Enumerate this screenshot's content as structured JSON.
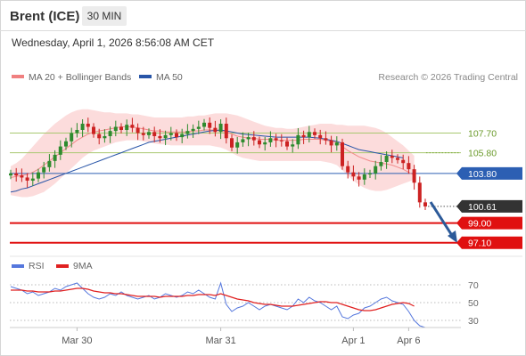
{
  "header": {
    "title": "Brent (ICE)",
    "timeframe": "30 MIN",
    "timestamp": "Wednesday, April 1, 2026 8:56:08 AM CET"
  },
  "legend": {
    "ma20": "MA 20 + Bollinger Bands",
    "ma50": "MA 50",
    "credit": "Research © 2026 Trading Central",
    "ma20_color": "#f08080",
    "ma50_color": "#2855a8"
  },
  "rsi_legend": {
    "rsi": "RSI",
    "ma": "9MA",
    "rsi_color": "#5577dd",
    "ma_color": "#e02020"
  },
  "levels": [
    {
      "value": 107.7,
      "label": "107.70",
      "kind": "green"
    },
    {
      "value": 105.8,
      "label": "105.80",
      "kind": "green"
    },
    {
      "value": 103.8,
      "label": "103.80",
      "kind": "blue"
    },
    {
      "value": 100.61,
      "label": "100.61",
      "kind": "last"
    },
    {
      "value": 99.0,
      "label": "99.00",
      "kind": "red"
    },
    {
      "value": 97.1,
      "label": "97.10",
      "kind": "red"
    }
  ],
  "colors": {
    "up": "#2e8b2e",
    "down": "#cc2222",
    "blue_level": "#2c5fb3",
    "red_level": "#e01010",
    "green_level": "#a8c870",
    "band_fill": "#fbd0d0",
    "last_bg": "#333333"
  },
  "chart_data": {
    "type": "candlestick",
    "ylim": [
      96.3,
      112.3
    ],
    "x_ticks": [
      "Mar 30",
      "Mar 31",
      "Apr 1",
      "Apr 6"
    ],
    "x_tick_index": [
      12,
      38,
      62,
      72
    ],
    "n_bars": 76,
    "closes": [
      103.8,
      103.6,
      103.4,
      103.1,
      103.3,
      103.9,
      104.4,
      105.0,
      105.6,
      106.4,
      106.9,
      107.7,
      108.0,
      108.6,
      108.3,
      107.6,
      107.2,
      107.4,
      107.9,
      108.3,
      108.0,
      108.5,
      108.2,
      107.7,
      107.5,
      107.8,
      107.4,
      107.2,
      107.5,
      107.7,
      107.3,
      107.6,
      107.9,
      108.1,
      108.3,
      108.7,
      108.2,
      107.8,
      108.6,
      107.2,
      106.3,
      106.8,
      107.1,
      107.3,
      107.0,
      106.6,
      106.8,
      107.2,
      107.0,
      106.9,
      106.4,
      106.6,
      107.5,
      107.3,
      107.8,
      107.5,
      107.2,
      107.0,
      106.5,
      106.8,
      104.5,
      103.9,
      103.5,
      103.2,
      103.7,
      103.8,
      104.5,
      104.9,
      105.5,
      105.3,
      105.1,
      104.8,
      104.2,
      102.9,
      101.0,
      100.61
    ],
    "ma50": [
      102.0,
      102.1,
      102.3,
      102.4,
      102.6,
      102.8,
      103.0,
      103.2,
      103.4,
      103.6,
      103.8,
      104.0,
      104.2,
      104.4,
      104.6,
      104.8,
      105.0,
      105.2,
      105.4,
      105.6,
      105.8,
      106.0,
      106.2,
      106.4,
      106.6,
      106.8,
      106.9,
      107.0,
      107.1,
      107.2,
      107.3,
      107.4,
      107.5,
      107.6,
      107.7,
      107.8,
      107.9,
      107.95,
      108.0,
      107.9,
      107.8,
      107.7,
      107.6,
      107.55,
      107.5,
      107.45,
      107.4,
      107.35,
      107.3,
      107.3,
      107.3,
      107.3,
      107.3,
      107.3,
      107.3,
      107.25,
      107.2,
      107.1,
      107.0,
      106.9,
      106.7,
      106.5,
      106.3,
      106.1,
      106.0,
      105.9,
      105.8,
      105.7,
      105.6,
      105.5,
      105.4,
      105.3,
      null,
      null,
      null,
      null
    ],
    "ma20": [
      103.4,
      103.5,
      103.6,
      103.7,
      103.9,
      104.2,
      104.6,
      105.0,
      105.4,
      105.8,
      106.2,
      106.6,
      107.0,
      107.3,
      107.6,
      107.8,
      107.9,
      108.0,
      108.1,
      108.2,
      108.3,
      108.3,
      108.3,
      108.2,
      108.1,
      108.0,
      107.9,
      107.9,
      107.8,
      107.8,
      107.8,
      107.8,
      107.8,
      107.9,
      107.9,
      108.0,
      108.0,
      108.0,
      107.9,
      107.8,
      107.6,
      107.4,
      107.3,
      107.2,
      107.2,
      107.1,
      107.1,
      107.1,
      107.0,
      107.0,
      107.0,
      107.0,
      107.0,
      107.1,
      107.1,
      107.1,
      107.1,
      107.0,
      106.9,
      106.8,
      106.4,
      106.0,
      105.7,
      105.4,
      105.2,
      105.0,
      104.9,
      104.8,
      104.7,
      104.6,
      104.4,
      104.2,
      103.9,
      103.6,
      null,
      null
    ],
    "bb_upper": [
      104.5,
      104.8,
      105.2,
      105.8,
      106.4,
      107.0,
      107.6,
      108.1,
      108.6,
      109.0,
      109.4,
      109.7,
      109.9,
      110.0,
      110.0,
      109.9,
      109.8,
      109.7,
      109.7,
      109.6,
      109.6,
      109.6,
      109.5,
      109.5,
      109.4,
      109.3,
      109.2,
      109.2,
      109.2,
      109.2,
      109.2,
      109.2,
      109.3,
      109.3,
      109.4,
      109.4,
      109.5,
      109.6,
      109.6,
      109.6,
      109.5,
      109.4,
      109.2,
      109.0,
      108.8,
      108.6,
      108.4,
      108.3,
      108.2,
      108.2,
      108.1,
      108.1,
      108.2,
      108.3,
      108.4,
      108.5,
      108.6,
      108.6,
      108.6,
      108.5,
      108.5,
      108.4,
      108.4,
      108.4,
      108.4,
      108.3,
      108.2,
      108.0,
      107.7,
      107.3,
      106.9,
      106.5,
      106.0,
      105.5,
      null,
      null
    ],
    "bb_lower": [
      101.7,
      101.6,
      101.5,
      101.5,
      101.6,
      101.8,
      102.0,
      102.4,
      102.8,
      103.3,
      103.8,
      104.3,
      104.8,
      105.3,
      105.7,
      106.0,
      106.2,
      106.4,
      106.6,
      106.8,
      106.9,
      107.0,
      107.0,
      107.0,
      106.9,
      106.8,
      106.7,
      106.6,
      106.6,
      106.5,
      106.5,
      106.5,
      106.5,
      106.5,
      106.5,
      106.5,
      106.5,
      106.4,
      106.3,
      106.1,
      105.8,
      105.5,
      105.3,
      105.2,
      105.1,
      105.0,
      105.0,
      105.0,
      105.0,
      105.0,
      105.0,
      105.0,
      105.0,
      105.0,
      105.0,
      105.0,
      105.0,
      104.9,
      104.8,
      104.6,
      104.1,
      103.6,
      103.1,
      102.7,
      102.4,
      102.2,
      102.1,
      102.1,
      102.2,
      102.4,
      102.6,
      102.8,
      103.0,
      103.2,
      null,
      null
    ],
    "rsi_ylim": [
      20,
      80
    ],
    "rsi_levels": [
      70,
      50,
      30
    ],
    "rsi": [
      68,
      66,
      64,
      60,
      62,
      58,
      60,
      62,
      66,
      64,
      68,
      70,
      72,
      66,
      60,
      56,
      54,
      56,
      60,
      58,
      62,
      58,
      56,
      54,
      56,
      58,
      54,
      56,
      60,
      58,
      56,
      58,
      62,
      60,
      64,
      60,
      56,
      54,
      72,
      48,
      40,
      44,
      46,
      50,
      46,
      42,
      46,
      48,
      46,
      44,
      42,
      46,
      54,
      50,
      56,
      52,
      50,
      46,
      42,
      46,
      34,
      32,
      36,
      38,
      44,
      46,
      50,
      54,
      56,
      52,
      50,
      48,
      40,
      30,
      24,
      22
    ],
    "rsi_ma": [
      64,
      64,
      64,
      63,
      63,
      62,
      62,
      62,
      63,
      63,
      64,
      65,
      66,
      66,
      65,
      63,
      62,
      61,
      61,
      60,
      60,
      59,
      58,
      57,
      57,
      57,
      57,
      56,
      57,
      57,
      57,
      57,
      58,
      58,
      59,
      59,
      59,
      58,
      60,
      58,
      56,
      54,
      53,
      52,
      50,
      49,
      48,
      48,
      47,
      46,
      46,
      46,
      47,
      48,
      49,
      50,
      51,
      51,
      50,
      50,
      48,
      46,
      44,
      42,
      41,
      41,
      42,
      44,
      46,
      48,
      49,
      50,
      49,
      46,
      null,
      null
    ]
  }
}
